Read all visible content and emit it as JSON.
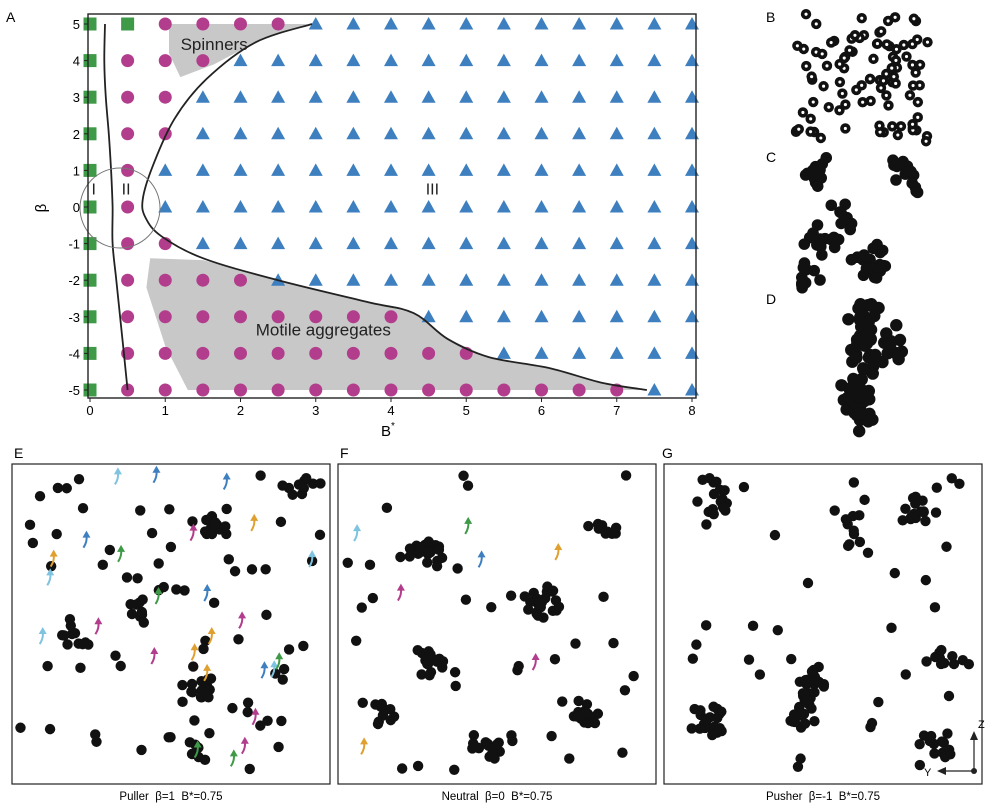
{
  "chart_data": [
    {
      "type": "scatter",
      "panel": "A",
      "xlabel": "B",
      "xlabel_sup": "*",
      "ylabel": "β",
      "xlim": [
        0,
        8
      ],
      "ylim": [
        -5,
        5
      ],
      "x_ticks": [
        "0",
        "1",
        "2",
        "3",
        "4",
        "5",
        "6",
        "7",
        "8"
      ],
      "y_ticks": [
        "5",
        "4",
        "3",
        "2",
        "1",
        "0",
        "-1",
        "-2",
        "-3",
        "-4",
        "-5"
      ],
      "x_grid": [
        0,
        0.5,
        1,
        1.5,
        2,
        2.5,
        3,
        3.5,
        4,
        4.5,
        5,
        5.5,
        6,
        6.5,
        7,
        7.5,
        8
      ],
      "y_grid": [
        5,
        4,
        3,
        2,
        1,
        0,
        -1,
        -2,
        -3,
        -4,
        -5
      ],
      "series_colors": {
        "I": "#3f9a48",
        "II": "#b23d8c",
        "III": "#3d7fbf",
        "region": "#c8c8c8"
      },
      "regions": [
        {
          "label": "I",
          "x": 0.05,
          "y": 0.5
        },
        {
          "label": "II",
          "x": 0.48,
          "y": 0.5
        },
        {
          "label": "III",
          "x": 4.55,
          "y": 0.5
        },
        {
          "label": "Spinners",
          "x": 1.65,
          "y": 4.45
        },
        {
          "label": "Motile aggregates",
          "x": 3.1,
          "y": -3.35
        }
      ],
      "boundary_I_II": [
        [
          0.2,
          5
        ],
        [
          0.19,
          4
        ],
        [
          0.21,
          3
        ],
        [
          0.25,
          2
        ],
        [
          0.28,
          1
        ],
        [
          0.3,
          0
        ],
        [
          0.3,
          -1
        ],
        [
          0.35,
          -2
        ],
        [
          0.4,
          -3
        ],
        [
          0.45,
          -4
        ],
        [
          0.5,
          -5
        ]
      ],
      "boundary_II_III": [
        [
          2.95,
          5
        ],
        [
          2.2,
          4.5
        ],
        [
          1.55,
          3.5
        ],
        [
          1.12,
          2.4
        ],
        [
          0.83,
          1.1
        ],
        [
          0.7,
          0.2
        ],
        [
          0.74,
          -0.3
        ],
        [
          0.95,
          -0.8
        ],
        [
          1.5,
          -1.4
        ],
        [
          2.5,
          -2.0
        ],
        [
          3.7,
          -2.6
        ],
        [
          4.3,
          -2.9
        ],
        [
          4.75,
          -3.6
        ],
        [
          5.3,
          -4.1
        ],
        [
          6.1,
          -4.4
        ],
        [
          6.8,
          -4.8
        ],
        [
          7.4,
          -5
        ]
      ]
    }
  ],
  "panels": {
    "A": "A",
    "B": "B",
    "C": "C",
    "D": "D",
    "E": "E",
    "F": "F",
    "G": "G"
  },
  "captions": {
    "E": "Puller  β=1  B*=0.75",
    "F": "Neutral  β=0  B*=0.75",
    "G": "Pusher  β=-1  B*=0.75"
  },
  "axes_glyph": {
    "z": "Z",
    "y": "Y"
  }
}
